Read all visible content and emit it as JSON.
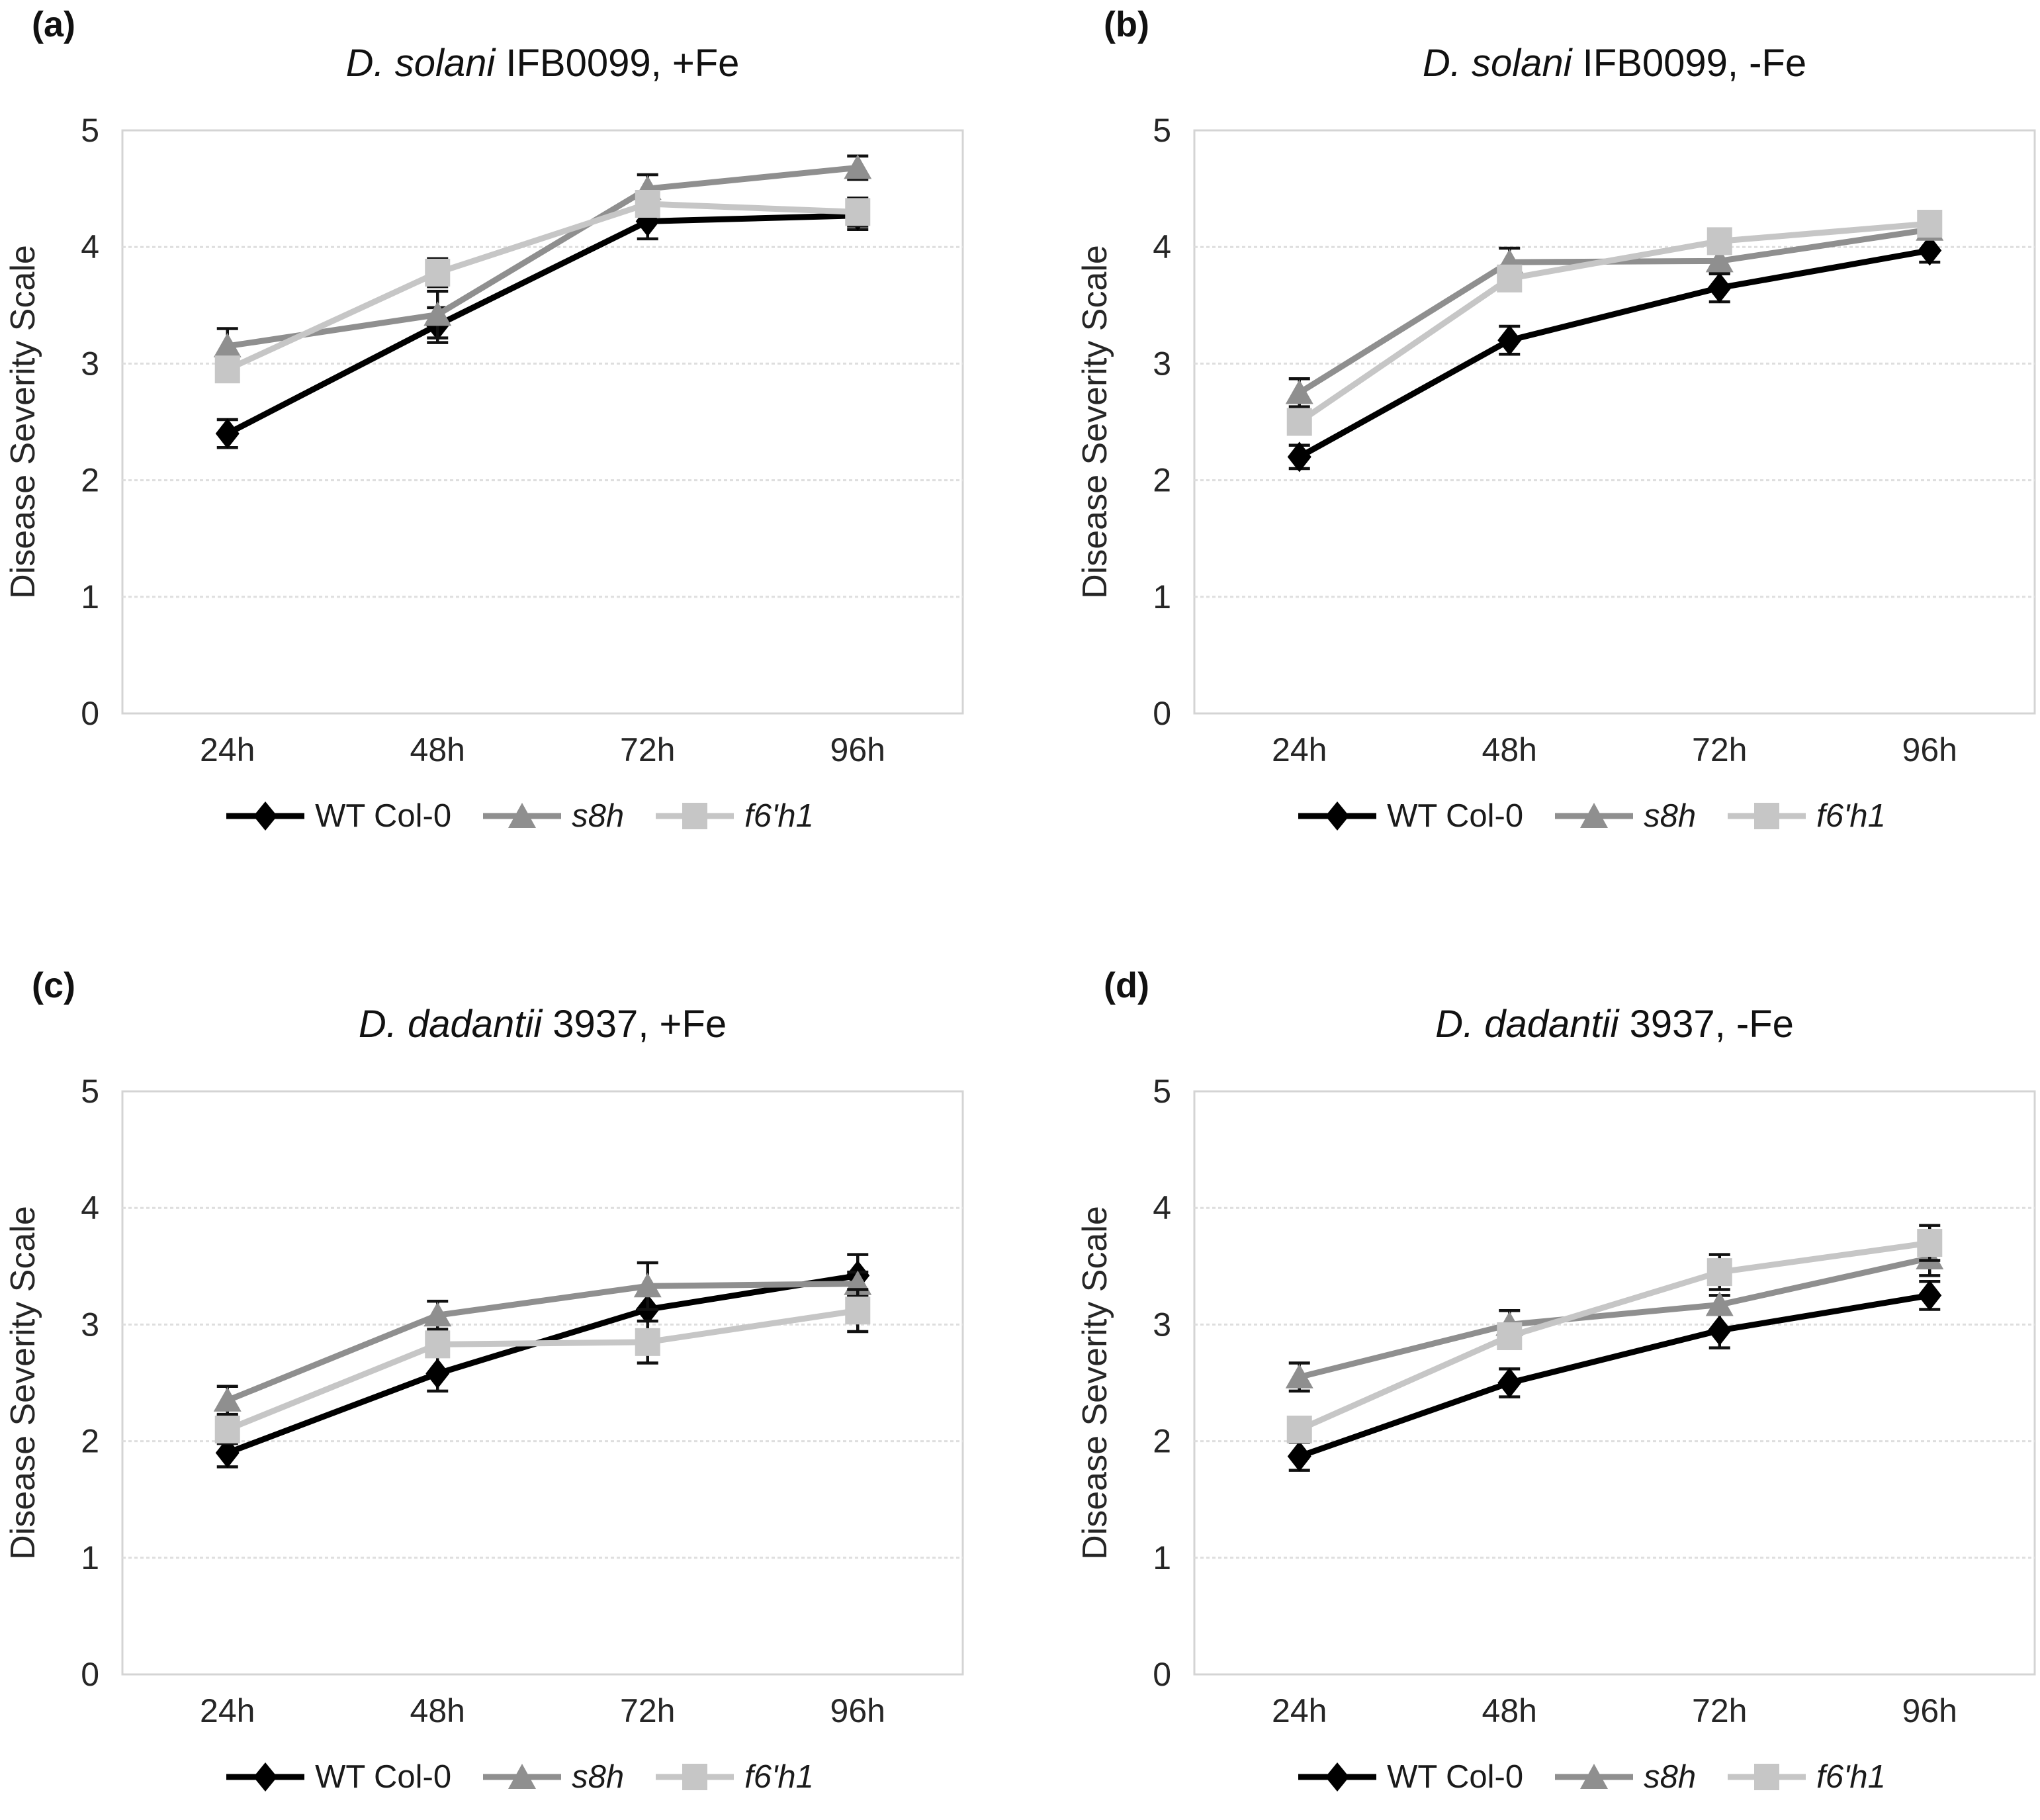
{
  "figure": {
    "ylabel": "Disease Severity Scale",
    "categories": [
      "24h",
      "48h",
      "72h",
      "96h"
    ],
    "y_ticks": [
      "0",
      "1",
      "2",
      "3",
      "4",
      "5"
    ],
    "ylim": [
      0,
      5
    ],
    "legend": [
      {
        "label": "WT Col-0",
        "italic": false,
        "marker": "diamond",
        "series_key": "wt"
      },
      {
        "label": "s8h",
        "italic": true,
        "marker": "triangle",
        "series_key": "s8h"
      },
      {
        "label": "f6'h1",
        "italic": true,
        "marker": "square",
        "series_key": "f6h1"
      }
    ],
    "colors": {
      "wt": "#000000",
      "s8h": "#8f8f8f",
      "f6h1": "#c6c6c6",
      "grid": "#dedede",
      "plot_border": "#d4d4d4",
      "error_bar": "#111111",
      "text": "#262626"
    }
  },
  "chart_data": [
    {
      "panel": "(a)",
      "type": "line",
      "title_italic": "D. solani",
      "title_rest": " IFB0099, +Fe",
      "ylabel": "Disease Severity Scale",
      "categories": [
        "24h",
        "48h",
        "72h",
        "96h"
      ],
      "ylim": [
        0,
        5
      ],
      "grid": true,
      "legend_position": "bottom",
      "series": [
        {
          "name": "WT Col-0",
          "key": "wt",
          "marker": "diamond",
          "values": [
            2.4,
            3.33,
            4.22,
            4.27
          ],
          "errors": [
            0.12,
            0.15,
            0.15,
            0.12
          ]
        },
        {
          "name": "s8h",
          "key": "s8h",
          "marker": "triangle",
          "values": [
            3.15,
            3.42,
            4.5,
            4.68
          ],
          "errors": [
            0.15,
            0.2,
            0.12,
            0.1
          ]
        },
        {
          "name": "f6'h1",
          "key": "f6h1",
          "marker": "square",
          "values": [
            2.95,
            3.78,
            4.37,
            4.3
          ],
          "errors": [
            0.1,
            0.12,
            0.1,
            0.12
          ]
        }
      ]
    },
    {
      "panel": "(b)",
      "type": "line",
      "title_italic": "D. solani",
      "title_rest": " IFB0099, -Fe",
      "ylabel": "Disease Severity Scale",
      "categories": [
        "24h",
        "48h",
        "72h",
        "96h"
      ],
      "ylim": [
        0,
        5
      ],
      "grid": true,
      "legend_position": "bottom",
      "series": [
        {
          "name": "WT Col-0",
          "key": "wt",
          "marker": "diamond",
          "values": [
            2.2,
            3.2,
            3.65,
            3.97
          ],
          "errors": [
            0.1,
            0.12,
            0.12,
            0.1
          ]
        },
        {
          "name": "s8h",
          "key": "s8h",
          "marker": "triangle",
          "values": [
            2.75,
            3.87,
            3.88,
            4.15
          ],
          "errors": [
            0.12,
            0.12,
            0.1,
            0.08
          ]
        },
        {
          "name": "f6'h1",
          "key": "f6h1",
          "marker": "square",
          "values": [
            2.5,
            3.73,
            4.05,
            4.2
          ],
          "errors": [
            0.1,
            0.1,
            0.08,
            0.1
          ]
        }
      ]
    },
    {
      "panel": "(c)",
      "type": "line",
      "title_italic": "D. dadantii",
      "title_rest": " 3937, +Fe",
      "ylabel": "Disease Severity Scale",
      "categories": [
        "24h",
        "48h",
        "72h",
        "96h"
      ],
      "ylim": [
        0,
        5
      ],
      "grid": true,
      "legend_position": "bottom",
      "series": [
        {
          "name": "WT Col-0",
          "key": "wt",
          "marker": "diamond",
          "values": [
            1.9,
            2.58,
            3.13,
            3.42
          ],
          "errors": [
            0.12,
            0.15,
            0.2,
            0.18
          ]
        },
        {
          "name": "s8h",
          "key": "s8h",
          "marker": "triangle",
          "values": [
            2.35,
            3.08,
            3.33,
            3.35
          ],
          "errors": [
            0.12,
            0.12,
            0.2,
            0.1
          ]
        },
        {
          "name": "f6'h1",
          "key": "f6h1",
          "marker": "square",
          "values": [
            2.1,
            2.83,
            2.85,
            3.12
          ],
          "errors": [
            0.12,
            0.1,
            0.18,
            0.18
          ]
        }
      ]
    },
    {
      "panel": "(d)",
      "type": "line",
      "title_italic": "D. dadantii",
      "title_rest": " 3937, -Fe",
      "ylabel": "Disease Severity Scale",
      "categories": [
        "24h",
        "48h",
        "72h",
        "96h"
      ],
      "ylim": [
        0,
        5
      ],
      "grid": true,
      "legend_position": "bottom",
      "series": [
        {
          "name": "WT Col-0",
          "key": "wt",
          "marker": "diamond",
          "values": [
            1.87,
            2.5,
            2.95,
            3.25
          ],
          "errors": [
            0.12,
            0.12,
            0.15,
            0.12
          ]
        },
        {
          "name": "s8h",
          "key": "s8h",
          "marker": "triangle",
          "values": [
            2.55,
            3.0,
            3.17,
            3.57
          ],
          "errors": [
            0.12,
            0.12,
            0.08,
            0.15
          ]
        },
        {
          "name": "f6'h1",
          "key": "f6h1",
          "marker": "square",
          "values": [
            2.1,
            2.9,
            3.45,
            3.7
          ],
          "errors": [
            0.1,
            0.1,
            0.15,
            0.15
          ]
        }
      ]
    }
  ]
}
